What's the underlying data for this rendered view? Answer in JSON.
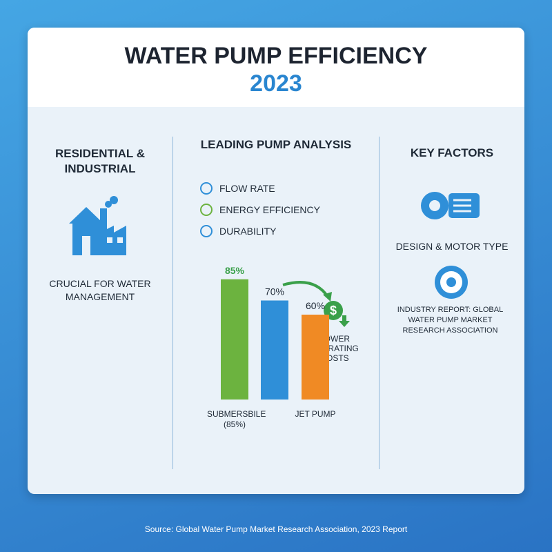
{
  "header": {
    "title": "WATER PUMP EFFICIENCY",
    "year": "2023"
  },
  "left": {
    "heading": "RESIDENTIAL & INDUSTRIAL",
    "caption": "CRUCIAL FOR WATER MANAGEMENT"
  },
  "center": {
    "heading": "LEADING PUMP ANALYSIS",
    "factors": [
      "FLOW RATE",
      "ENERGY EFFICIENCY",
      "DURABILITY"
    ],
    "annotation": "LOWER OPERATING COSTS"
  },
  "right": {
    "heading": "KEY FACTORS",
    "item": "DESIGN & MOTOR TYPE",
    "report": "INDUSTRY REPORT: GLOBAL WATER PUMP MARKET RESEARCH ASSOCIATION"
  },
  "source": "Source: Global Water Pump Market Research Association, 2023 Report",
  "chart_data": {
    "type": "bar",
    "categories": [
      "SUBMERSBILE (85%)",
      null,
      "JET PUMP"
    ],
    "values": [
      85,
      70,
      60
    ],
    "value_labels": [
      "85%",
      "70%",
      "60%"
    ],
    "colors": [
      "#6cb33f",
      "#2f8fd8",
      "#f08a24"
    ]
  }
}
